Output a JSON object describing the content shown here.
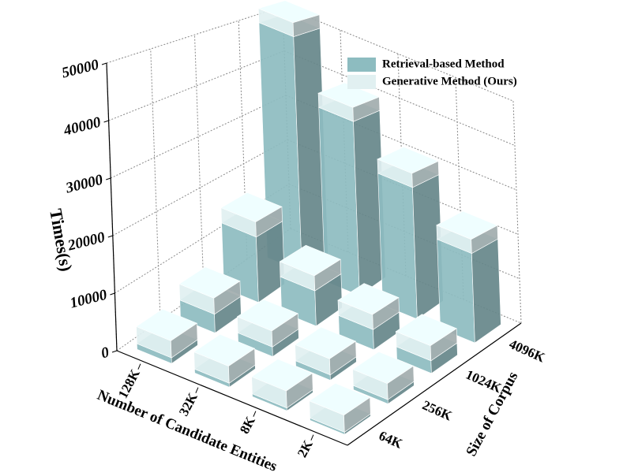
{
  "chart_data": {
    "type": "bar3d",
    "y_label": "Times(s)",
    "x_label": "Number of Candidate Entities",
    "z_label": "Size of Corpus",
    "categories": [
      "128K",
      "32K",
      "8K",
      "2K"
    ],
    "depth_categories": [
      "64K",
      "256K",
      "1024K",
      "4096K"
    ],
    "series": [
      {
        "name": "Retrieval-based Method",
        "color": "#8dbcc0",
        "values": [
          [
            1000,
            3500,
            13000,
            50000
          ],
          [
            700,
            1800,
            7000,
            37000
          ],
          [
            500,
            1000,
            4000,
            28000
          ],
          [
            400,
            800,
            2500,
            19000
          ]
        ]
      },
      {
        "name": "Generative Method (Ours)",
        "color": "#e1f0f1",
        "values": [
          [
            3000,
            3000,
            3000,
            3000
          ],
          [
            3000,
            3000,
            3000,
            3000
          ],
          [
            3000,
            3000,
            3000,
            3000
          ],
          [
            3000,
            3000,
            3000,
            3000
          ]
        ]
      }
    ],
    "stacked": true,
    "ylim": [
      0,
      50000
    ],
    "yticks": [
      0,
      10000,
      20000,
      30000,
      40000,
      50000
    ],
    "grid": true
  }
}
